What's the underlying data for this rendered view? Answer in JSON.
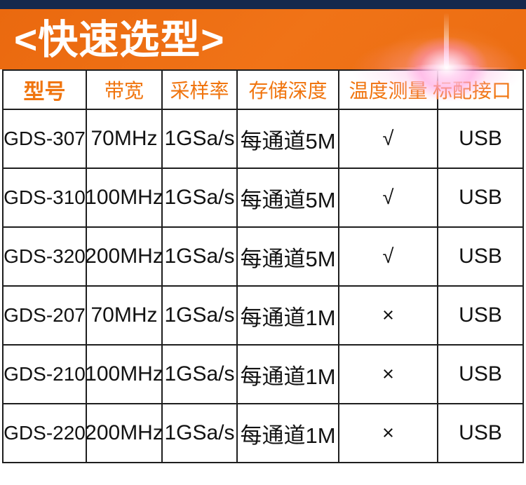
{
  "banner": {
    "title": "<快速选型>"
  },
  "table": {
    "headers": [
      "型号",
      "带宽",
      "采样率",
      "存储深度",
      "温度测量",
      "标配接口"
    ],
    "rows": [
      {
        "model": "GDS-307",
        "bandwidth": "70MHz",
        "sample_rate": "1GSa/s",
        "memory_depth": "每通道5M",
        "temperature": "√",
        "interface": "USB"
      },
      {
        "model": "GDS-310",
        "bandwidth": "100MHz",
        "sample_rate": "1GSa/s",
        "memory_depth": "每通道5M",
        "temperature": "√",
        "interface": "USB"
      },
      {
        "model": "GDS-320",
        "bandwidth": "200MHz",
        "sample_rate": "1GSa/s",
        "memory_depth": "每通道5M",
        "temperature": "√",
        "interface": "USB"
      },
      {
        "model": "GDS-207",
        "bandwidth": "70MHz",
        "sample_rate": "1GSa/s",
        "memory_depth": "每通道1M",
        "temperature": "×",
        "interface": "USB"
      },
      {
        "model": "GDS-210",
        "bandwidth": "100MHz",
        "sample_rate": "1GSa/s",
        "memory_depth": "每通道1M",
        "temperature": "×",
        "interface": "USB"
      },
      {
        "model": "GDS-220",
        "bandwidth": "200MHz",
        "sample_rate": "1GSa/s",
        "memory_depth": "每通道1M",
        "temperature": "×",
        "interface": "USB"
      }
    ]
  },
  "colors": {
    "top_bar_navy": "#15294d",
    "banner_orange": "#ec6d12",
    "header_text_orange": "#f0750f",
    "body_text": "#121212",
    "table_border": "#1e1e1e"
  }
}
